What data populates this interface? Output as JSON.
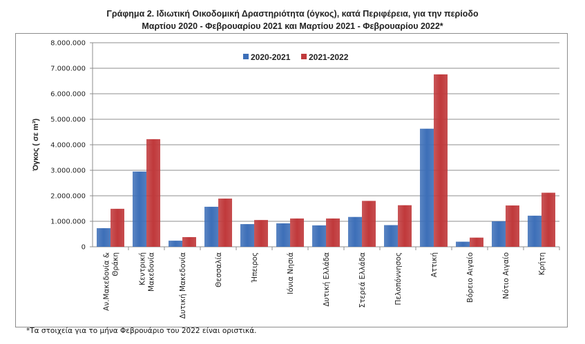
{
  "chart_data": {
    "type": "bar",
    "title": "Γράφημα 2.  Ιδιωτική Οικοδομική Δραστηριότητα (όγκος), κατά Περιφέρεια, για την περίοδο",
    "subtitle": "Μαρτίου 2020 - Φεβρουαρίου 2021 και Μαρτίου 2021 - Φεβρουαρίου 2022*",
    "xlabel": "",
    "ylabel": "Όγκος ( σε  m³)",
    "ylim": [
      0,
      8000000
    ],
    "yticks": [
      "0",
      "1.000.000",
      "2.000.000",
      "3.000.000",
      "4.000.000",
      "5.000.000",
      "6.000.000",
      "7.000.000",
      "8.000.000"
    ],
    "grid": true,
    "legend_position": "top-right",
    "categories": [
      "Αν.Μακεδονία &\nΘράκη",
      "Κεντρική\nΜακεδονία",
      "Δυτική Μακεδονία",
      "Θεσσαλία",
      "Ήπειρος",
      "Ιόνια Νησιά",
      "Δυτική Ελλάδα",
      "Στερεά Ελλάδα",
      "Πελοπόννησος",
      "Αττική",
      "Βόρειο Αιγαίο",
      "Νότιο Αιγαίο",
      "Κρήτη"
    ],
    "series": [
      {
        "name": "2020-2021",
        "color": "#3d6fb8",
        "values": [
          730000,
          2950000,
          240000,
          1570000,
          890000,
          920000,
          840000,
          1170000,
          850000,
          4630000,
          200000,
          1000000,
          1220000
        ]
      },
      {
        "name": "2021-2022",
        "color": "#c0393b",
        "values": [
          1490000,
          4220000,
          380000,
          1890000,
          1050000,
          1110000,
          1110000,
          1800000,
          1630000,
          6760000,
          360000,
          1620000,
          2120000
        ]
      }
    ]
  },
  "footnote": "*Τα στοιχεία για το μήνα Φεβρουάριο του 2022 είναι οριστικά."
}
